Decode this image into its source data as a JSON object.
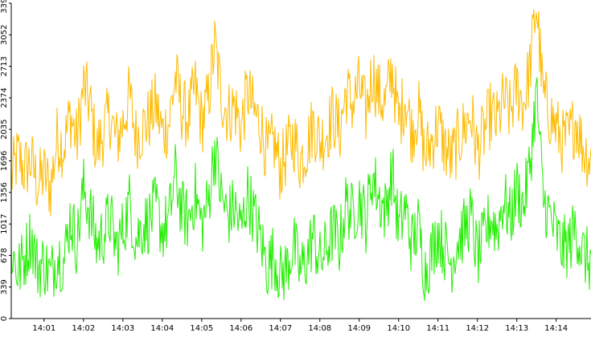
{
  "chart_data": {
    "type": "line",
    "title": "",
    "xlabel": "",
    "ylabel": "",
    "grid": false,
    "ylim": [
      0,
      3392
    ],
    "xlim": [
      "14:00:10",
      "14:14:53"
    ],
    "y_ticks": [
      0,
      339,
      678,
      1017,
      1356,
      1696,
      2035,
      2374,
      2713,
      3052,
      3392
    ],
    "x_tick_labels": [
      "14:01",
      "14:02",
      "14:03",
      "14:04",
      "14:05",
      "14:06",
      "14:07",
      "14:08",
      "14:09",
      "14:10",
      "14:11",
      "14:12",
      "14:13",
      "14:14"
    ],
    "x_tick_minutes": [
      1,
      2,
      3,
      4,
      5,
      6,
      7,
      8,
      9,
      10,
      11,
      12,
      13,
      14
    ],
    "series": [
      {
        "color": "#ffbb00",
        "x": [
          "14:00:10",
          "14:00:20",
          "14:00:30",
          "14:00:40",
          "14:00:50",
          "14:01:00",
          "14:01:10",
          "14:01:20",
          "14:01:30",
          "14:01:40",
          "14:01:50",
          "14:02:00",
          "14:02:10",
          "14:02:20",
          "14:02:30",
          "14:02:40",
          "14:02:50",
          "14:03:00",
          "14:03:10",
          "14:03:20",
          "14:03:30",
          "14:03:40",
          "14:03:50",
          "14:04:00",
          "14:04:10",
          "14:04:20",
          "14:04:30",
          "14:04:40",
          "14:04:50",
          "14:05:00",
          "14:05:10",
          "14:05:20",
          "14:05:30",
          "14:05:40",
          "14:05:50",
          "14:06:00",
          "14:06:10",
          "14:06:20",
          "14:06:30",
          "14:06:40",
          "14:06:50",
          "14:07:00",
          "14:07:10",
          "14:07:20",
          "14:07:30",
          "14:07:40",
          "14:07:50",
          "14:08:00",
          "14:08:10",
          "14:08:20",
          "14:08:30",
          "14:08:40",
          "14:08:50",
          "14:09:00",
          "14:09:10",
          "14:09:20",
          "14:09:30",
          "14:09:40",
          "14:09:50",
          "14:10:00",
          "14:10:10",
          "14:10:20",
          "14:10:30",
          "14:10:40",
          "14:10:50",
          "14:11:00",
          "14:11:10",
          "14:11:20",
          "14:11:30",
          "14:11:40",
          "14:11:50",
          "14:12:00",
          "14:12:10",
          "14:12:20",
          "14:12:30",
          "14:12:40",
          "14:12:50",
          "14:13:00",
          "14:13:10",
          "14:13:20",
          "14:13:30",
          "14:13:40",
          "14:13:50",
          "14:14:00",
          "14:14:10",
          "14:14:20",
          "14:14:30",
          "14:14:40",
          "14:14:53"
        ],
        "values": [
          1500,
          1750,
          1600,
          1700,
          1450,
          1550,
          1400,
          1950,
          1850,
          2200,
          1900,
          2500,
          2300,
          1800,
          2000,
          2200,
          1900,
          2100,
          2400,
          1950,
          2050,
          2150,
          2300,
          2000,
          2100,
          2600,
          2250,
          2150,
          2500,
          2100,
          2350,
          2950,
          2400,
          2200,
          2300,
          2050,
          2450,
          2200,
          2100,
          1750,
          1900,
          1600,
          1800,
          1950,
          1700,
          1850,
          2100,
          1900,
          2000,
          2200,
          2000,
          2450,
          2300,
          2500,
          2200,
          2650,
          2400,
          2300,
          2700,
          2100,
          2400,
          2000,
          2250,
          1750,
          1900,
          2100,
          1850,
          1700,
          1900,
          2050,
          2200,
          1800,
          2000,
          2200,
          2100,
          2350,
          2200,
          2500,
          2300,
          2700,
          3392,
          2400,
          2200,
          2050,
          1900,
          1950,
          2150,
          1850,
          1700
        ]
      },
      {
        "color": "#22ee00",
        "x": [
          "14:00:10",
          "14:00:20",
          "14:00:30",
          "14:00:40",
          "14:00:50",
          "14:01:00",
          "14:01:10",
          "14:01:20",
          "14:01:30",
          "14:01:40",
          "14:01:50",
          "14:02:00",
          "14:02:10",
          "14:02:20",
          "14:02:30",
          "14:02:40",
          "14:02:50",
          "14:03:00",
          "14:03:10",
          "14:03:20",
          "14:03:30",
          "14:03:40",
          "14:03:50",
          "14:04:00",
          "14:04:10",
          "14:04:20",
          "14:04:30",
          "14:04:40",
          "14:04:50",
          "14:05:00",
          "14:05:10",
          "14:05:20",
          "14:05:30",
          "14:05:40",
          "14:05:50",
          "14:06:00",
          "14:06:10",
          "14:06:20",
          "14:06:30",
          "14:06:40",
          "14:06:50",
          "14:07:00",
          "14:07:10",
          "14:07:20",
          "14:07:30",
          "14:07:40",
          "14:07:50",
          "14:08:00",
          "14:08:10",
          "14:08:20",
          "14:08:30",
          "14:08:40",
          "14:08:50",
          "14:09:00",
          "14:09:10",
          "14:09:20",
          "14:09:30",
          "14:09:40",
          "14:09:50",
          "14:10:00",
          "14:10:10",
          "14:10:20",
          "14:10:30",
          "14:10:40",
          "14:10:50",
          "14:11:00",
          "14:11:10",
          "14:11:20",
          "14:11:30",
          "14:11:40",
          "14:11:50",
          "14:12:00",
          "14:12:10",
          "14:12:20",
          "14:12:30",
          "14:12:40",
          "14:12:50",
          "14:13:00",
          "14:13:10",
          "14:13:20",
          "14:13:30",
          "14:13:40",
          "14:13:50",
          "14:14:00",
          "14:14:10",
          "14:14:20",
          "14:14:30",
          "14:14:40",
          "14:14:53"
        ],
        "values": [
          750,
          500,
          650,
          900,
          550,
          600,
          450,
          700,
          600,
          1100,
          800,
          1400,
          1150,
          800,
          900,
          1100,
          750,
          950,
          1250,
          850,
          1000,
          1050,
          1200,
          950,
          1050,
          1550,
          1150,
          1050,
          1350,
          1000,
          1250,
          1850,
          1300,
          1100,
          1200,
          950,
          1350,
          1100,
          850,
          550,
          700,
          450,
          550,
          800,
          500,
          650,
          900,
          600,
          750,
          950,
          800,
          1250,
          1100,
          1300,
          1050,
          1550,
          1300,
          1150,
          1600,
          950,
          1200,
          800,
          1000,
          500,
          700,
          950,
          750,
          600,
          850,
          950,
          1100,
          650,
          850,
          1100,
          950,
          1300,
          1050,
          1400,
          1200,
          1650,
          2450,
          1300,
          1100,
          900,
          750,
          800,
          1000,
          700,
          600
        ]
      }
    ]
  }
}
